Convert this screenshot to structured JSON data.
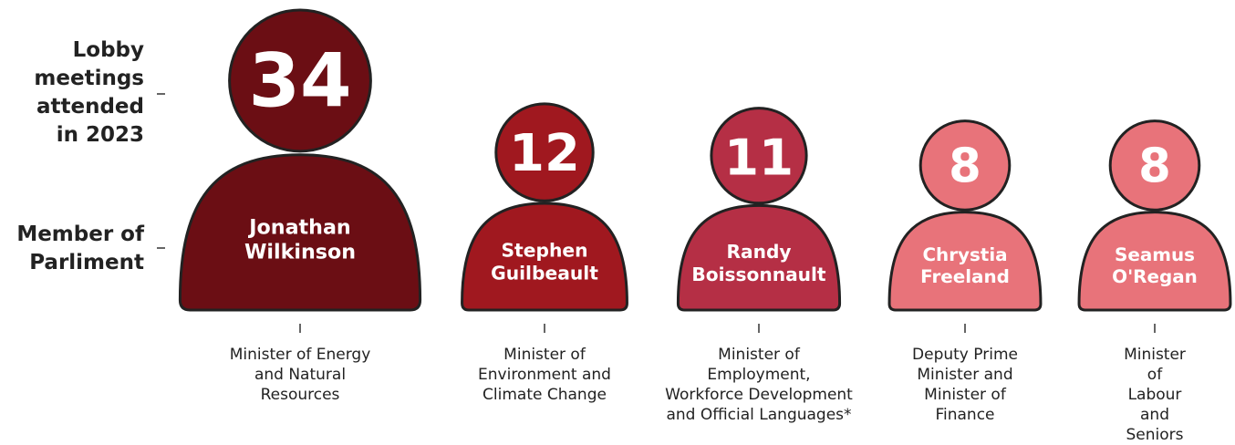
{
  "chart_data": {
    "type": "person-pictogram",
    "row_labels": [
      "Lobby\nmeetings\nattended\nin 2023",
      "Member of\nParliment"
    ],
    "categories": [
      "Jonathan\nWilkinson",
      "Stephen\nGuilbeault",
      "Randy\nBoissonnault",
      "Chrystia\nFreeland",
      "Seamus\nO'Regan"
    ],
    "roles": [
      "Minister of Energy\nand Natural\nResources",
      "Minister of\nEnvironment and\nClimate Change",
      "Minister of\nEmployment,\nWorkforce Development\nand Official Languages*",
      "Deputy Prime\nMinister and\nMinister of\nFinance",
      "Minister of\nLabour and\nSeniors"
    ],
    "values": [
      34,
      12,
      11,
      8,
      8
    ],
    "colors": [
      "#6b0e14",
      "#a0181f",
      "#b52f45",
      "#e8737a",
      "#e8737a"
    ]
  }
}
